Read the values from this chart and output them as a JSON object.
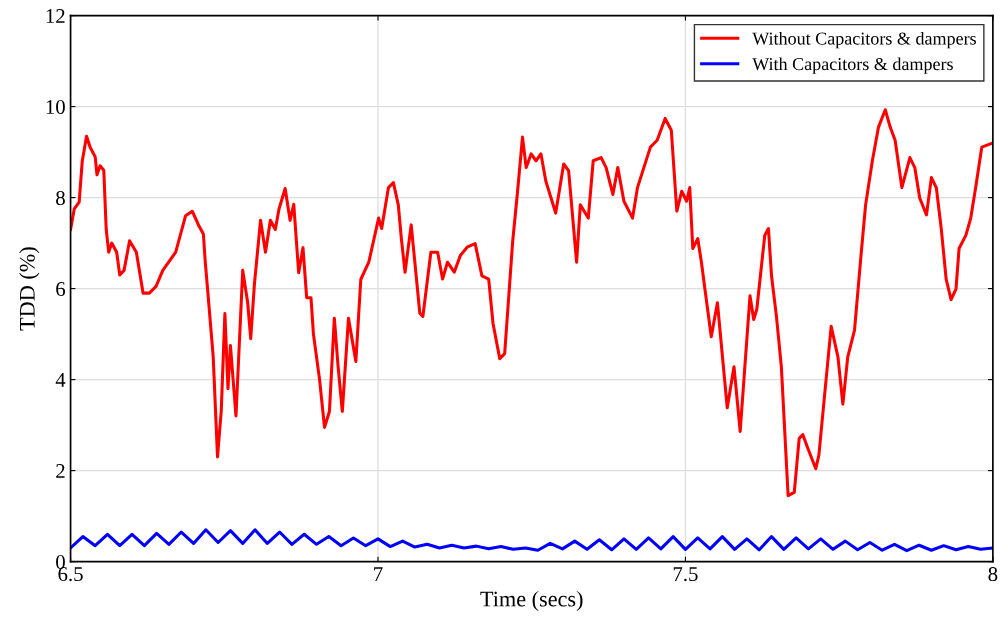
{
  "chart_data": {
    "type": "line",
    "xlabel": "Time (secs)",
    "ylabel": "TDD (%)",
    "xlim": [
      6.5,
      8
    ],
    "xticks": [
      6.5,
      7,
      7.5,
      8
    ],
    "ylim": [
      0,
      12
    ],
    "yticks": [
      0,
      2,
      4,
      6,
      8,
      10,
      12
    ],
    "grid": true,
    "legend": "top right",
    "line_style": "solid",
    "marker": "none",
    "series": [
      {
        "name": "Without Capacitors & dampers",
        "color": "#ff0000",
        "x": [
          6.5,
          6.506,
          6.514,
          6.519,
          6.526,
          6.532,
          6.54,
          6.543,
          6.548,
          6.554,
          6.558,
          6.562,
          6.567,
          6.575,
          6.58,
          6.587,
          6.596,
          6.607,
          6.618,
          6.628,
          6.639,
          6.65,
          6.671,
          6.687,
          6.698,
          6.708,
          6.716,
          6.719,
          6.724,
          6.732,
          6.739,
          6.745,
          6.751,
          6.756,
          6.76,
          6.769,
          6.78,
          6.788,
          6.793,
          6.799,
          6.809,
          6.817,
          6.825,
          6.833,
          6.839,
          6.849,
          6.857,
          6.863,
          6.871,
          6.878,
          6.884,
          6.891,
          6.895,
          6.905,
          6.913,
          6.921,
          6.929,
          6.935,
          6.942,
          6.952,
          6.964,
          6.972,
          6.985,
          7.001,
          7.006,
          7.017,
          7.025,
          7.033,
          7.038,
          7.044,
          7.054,
          7.068,
          7.073,
          7.086,
          7.097,
          7.105,
          7.113,
          7.124,
          7.134,
          7.145,
          7.158,
          7.169,
          7.18,
          7.187,
          7.198,
          7.206,
          7.219,
          7.227,
          7.235,
          7.241,
          7.249,
          7.257,
          7.265,
          7.273,
          7.289,
          7.302,
          7.31,
          7.323,
          7.329,
          7.342,
          7.35,
          7.363,
          7.371,
          7.382,
          7.39,
          7.4,
          7.414,
          7.422,
          7.443,
          7.454,
          7.467,
          7.477,
          7.486,
          7.494,
          7.502,
          7.507,
          7.512,
          7.52,
          7.526,
          7.531,
          7.542,
          7.552,
          7.568,
          7.579,
          7.589,
          7.605,
          7.611,
          7.616,
          7.629,
          7.635,
          7.64,
          7.648,
          7.656,
          7.667,
          7.677,
          7.685,
          7.691,
          7.699,
          7.712,
          7.717,
          7.737,
          7.748,
          7.756,
          7.764,
          7.775,
          7.785,
          7.793,
          7.804,
          7.814,
          7.825,
          7.833,
          7.841,
          7.852,
          7.865,
          7.873,
          7.881,
          7.892,
          7.9,
          7.908,
          7.916,
          7.924,
          7.932,
          7.94,
          7.945,
          7.956,
          7.964,
          7.972,
          7.982,
          8.0
        ],
        "values": [
          7.3,
          7.75,
          7.9,
          8.8,
          9.35,
          9.1,
          8.9,
          8.5,
          8.7,
          8.6,
          7.3,
          6.8,
          7.0,
          6.8,
          6.3,
          6.4,
          7.05,
          6.8,
          5.9,
          5.9,
          6.05,
          6.4,
          6.8,
          7.6,
          7.7,
          7.4,
          7.2,
          6.6,
          5.8,
          4.5,
          2.3,
          3.3,
          5.45,
          3.8,
          4.75,
          3.2,
          6.4,
          5.7,
          4.9,
          6.1,
          7.5,
          6.8,
          7.5,
          7.3,
          7.75,
          8.2,
          7.5,
          7.85,
          6.35,
          6.9,
          5.8,
          5.8,
          5.0,
          4.0,
          2.95,
          3.3,
          5.35,
          4.3,
          3.3,
          5.35,
          4.4,
          6.2,
          6.58,
          7.55,
          7.32,
          8.22,
          8.33,
          7.84,
          7.1,
          6.36,
          7.4,
          5.46,
          5.39,
          6.8,
          6.8,
          6.21,
          6.58,
          6.36,
          6.73,
          6.91,
          6.99,
          6.28,
          6.21,
          5.24,
          4.46,
          4.57,
          7.03,
          8.14,
          9.33,
          8.66,
          8.96,
          8.81,
          8.96,
          8.36,
          7.66,
          8.74,
          8.59,
          6.58,
          7.84,
          7.55,
          8.81,
          8.88,
          8.66,
          8.07,
          8.66,
          7.92,
          7.55,
          8.22,
          9.11,
          9.26,
          9.74,
          9.48,
          7.7,
          8.14,
          7.92,
          8.22,
          6.88,
          7.1,
          6.58,
          6.06,
          4.94,
          5.69,
          3.38,
          4.28,
          2.86,
          5.84,
          5.32,
          5.54,
          7.17,
          7.32,
          6.28,
          5.39,
          4.28,
          1.45,
          1.52,
          2.71,
          2.79,
          2.49,
          2.04,
          2.34,
          5.17,
          4.5,
          3.46,
          4.5,
          5.09,
          6.65,
          7.84,
          8.81,
          9.55,
          9.93,
          9.55,
          9.26,
          8.22,
          8.88,
          8.66,
          7.99,
          7.62,
          8.44,
          8.22,
          7.32,
          6.21,
          5.76,
          5.99,
          6.88,
          7.17,
          7.55,
          8.22,
          9.11,
          9.2
        ]
      },
      {
        "name": "With Capacitors & dampers",
        "color": "#0000ff",
        "x": [
          6.5,
          6.52,
          6.54,
          6.56,
          6.58,
          6.6,
          6.62,
          6.64,
          6.66,
          6.68,
          6.7,
          6.72,
          6.74,
          6.76,
          6.78,
          6.8,
          6.82,
          6.84,
          6.86,
          6.88,
          6.9,
          6.92,
          6.94,
          6.96,
          6.98,
          7.0,
          7.02,
          7.04,
          7.06,
          7.08,
          7.1,
          7.12,
          7.14,
          7.16,
          7.18,
          7.2,
          7.22,
          7.24,
          7.26,
          7.28,
          7.3,
          7.32,
          7.34,
          7.36,
          7.38,
          7.4,
          7.42,
          7.44,
          7.46,
          7.48,
          7.5,
          7.52,
          7.54,
          7.56,
          7.58,
          7.6,
          7.62,
          7.64,
          7.66,
          7.68,
          7.7,
          7.72,
          7.74,
          7.76,
          7.78,
          7.8,
          7.82,
          7.84,
          7.86,
          7.88,
          7.9,
          7.92,
          7.94,
          7.96,
          7.98,
          8.0
        ],
        "values": [
          0.3,
          0.55,
          0.35,
          0.6,
          0.35,
          0.6,
          0.35,
          0.62,
          0.38,
          0.65,
          0.4,
          0.7,
          0.42,
          0.68,
          0.4,
          0.7,
          0.4,
          0.65,
          0.38,
          0.6,
          0.38,
          0.55,
          0.35,
          0.52,
          0.35,
          0.5,
          0.33,
          0.45,
          0.32,
          0.38,
          0.3,
          0.36,
          0.3,
          0.34,
          0.28,
          0.33,
          0.27,
          0.3,
          0.25,
          0.4,
          0.28,
          0.45,
          0.27,
          0.48,
          0.26,
          0.5,
          0.27,
          0.52,
          0.28,
          0.55,
          0.27,
          0.52,
          0.28,
          0.55,
          0.27,
          0.5,
          0.26,
          0.55,
          0.27,
          0.52,
          0.28,
          0.5,
          0.27,
          0.45,
          0.26,
          0.42,
          0.25,
          0.38,
          0.24,
          0.36,
          0.25,
          0.35,
          0.26,
          0.33,
          0.27,
          0.3
        ]
      }
    ]
  }
}
